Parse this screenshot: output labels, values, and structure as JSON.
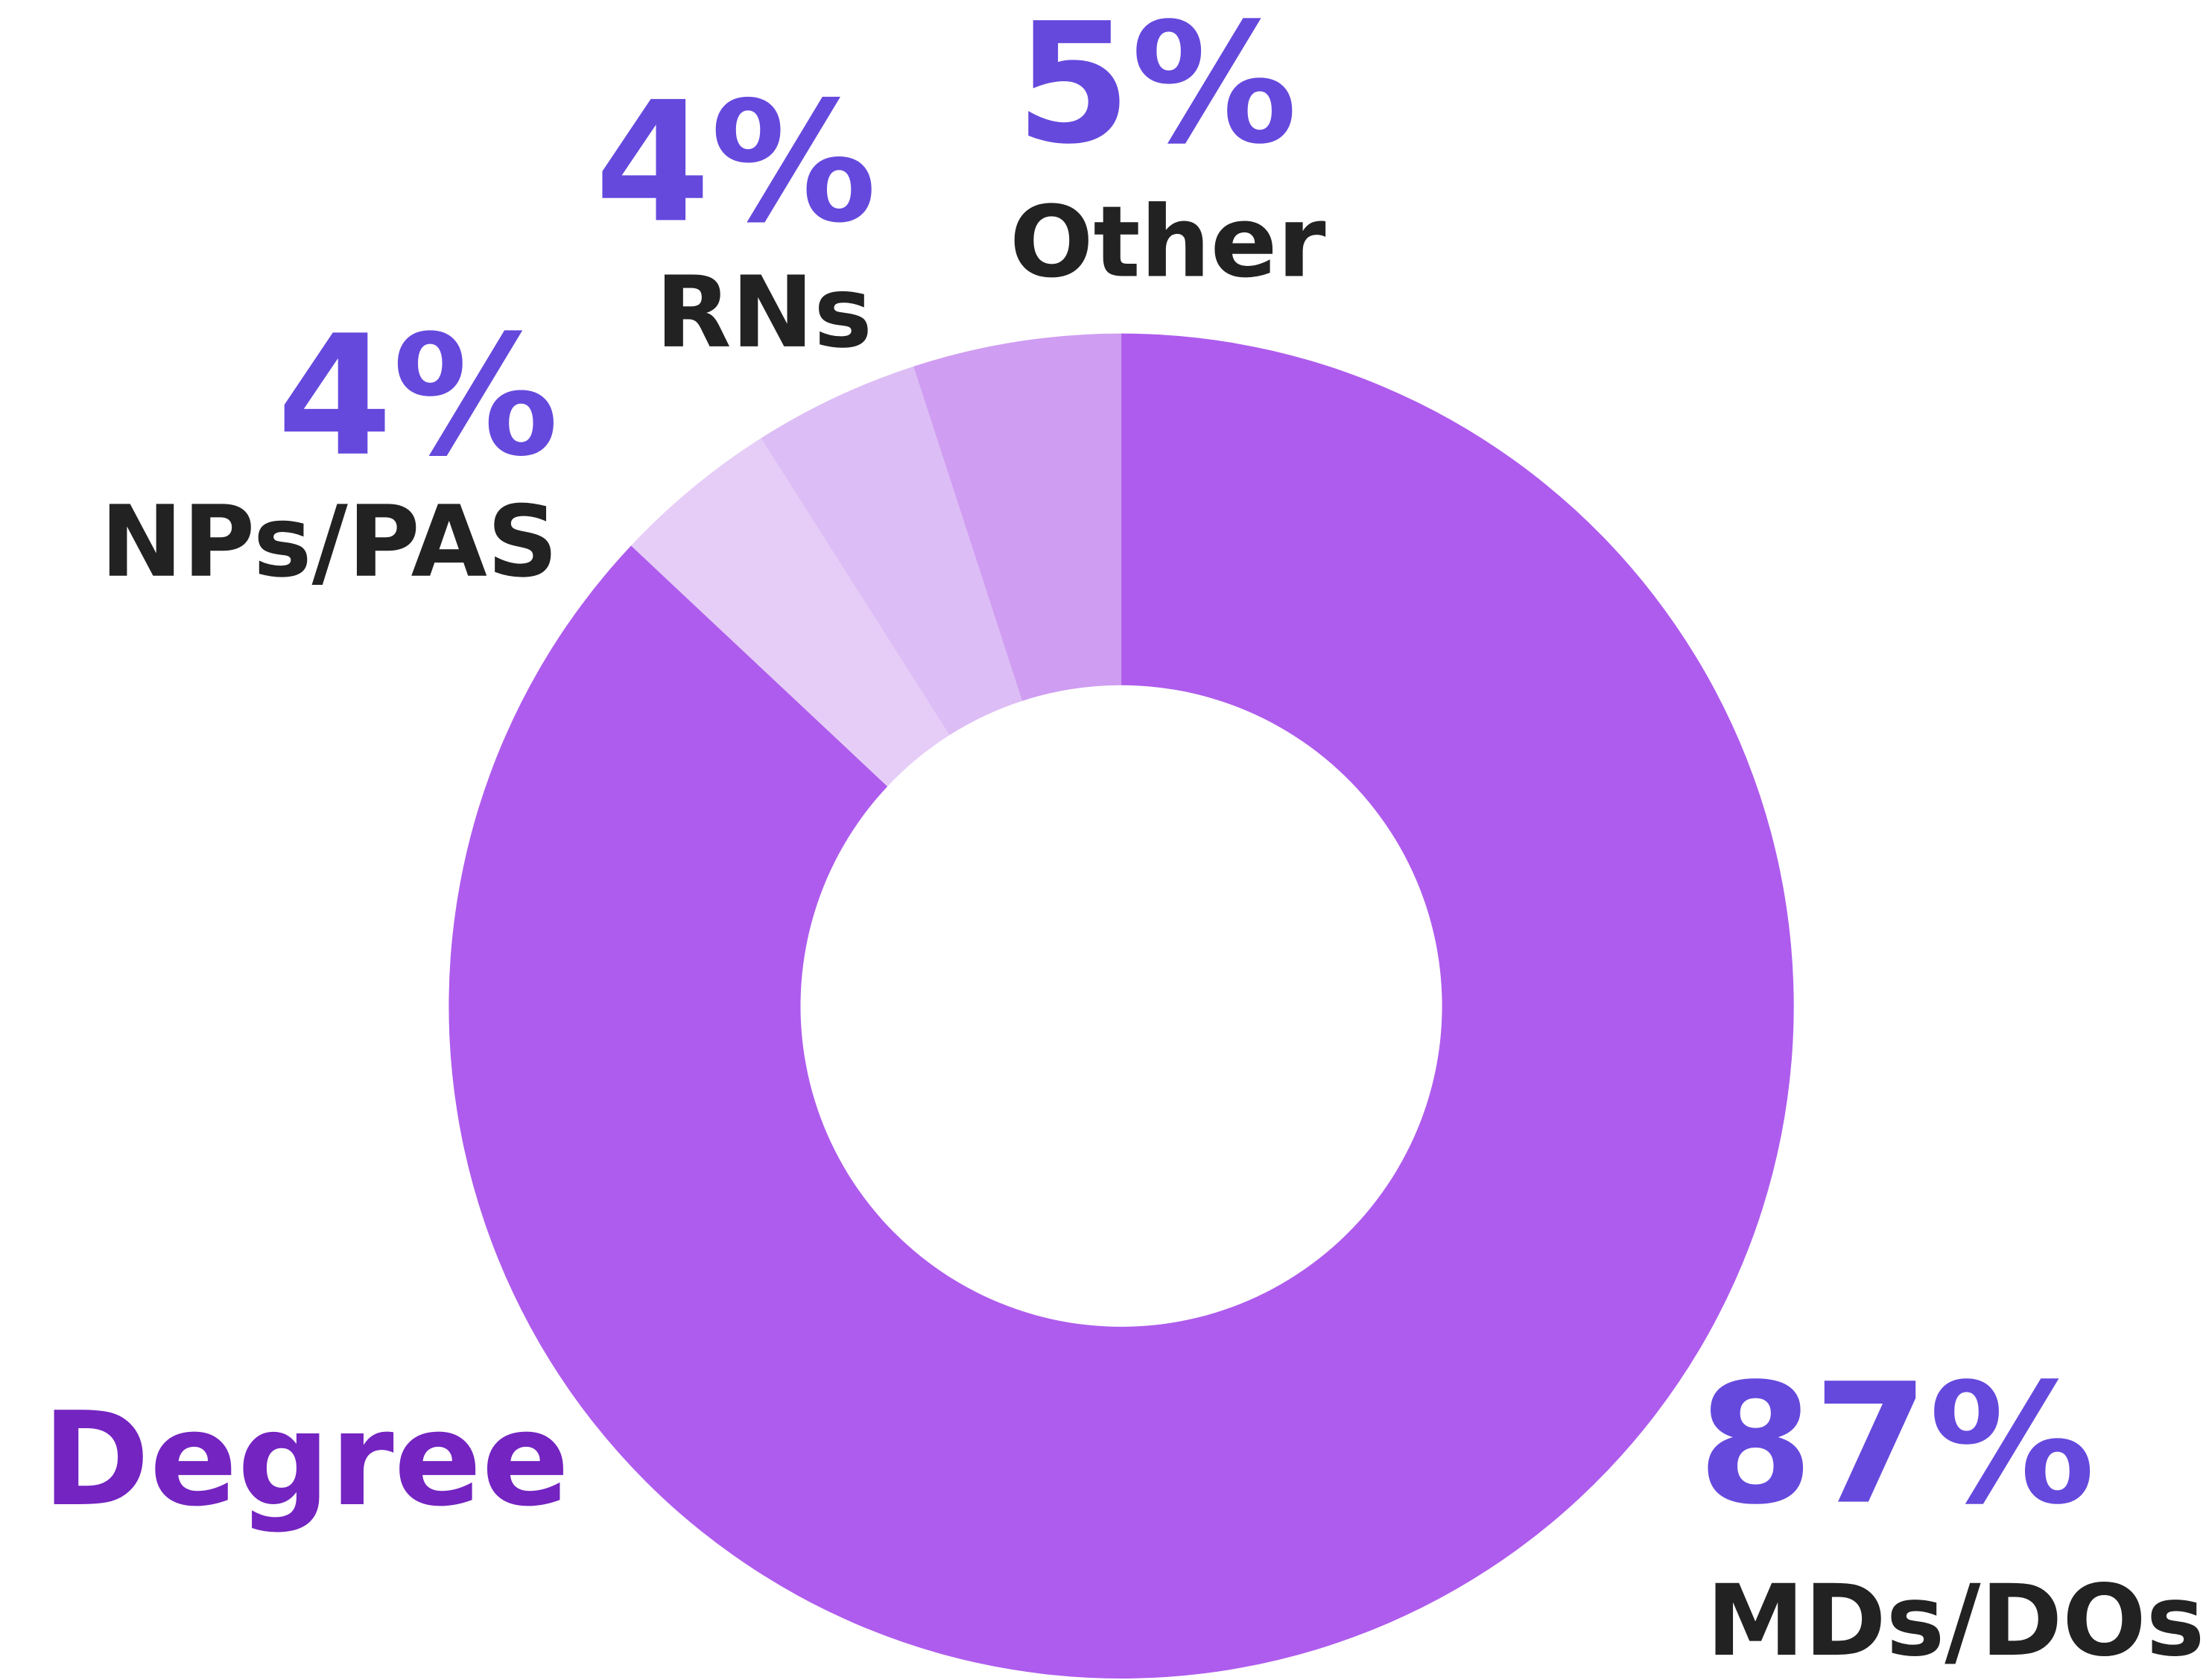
{
  "chart_data": {
    "type": "donut",
    "title": "Degree",
    "categories": [
      "MDs/DOs",
      "NPs/PAS",
      "RNs",
      "Other"
    ],
    "values": [
      87,
      4,
      4,
      5
    ],
    "value_labels": [
      "87%",
      "4%",
      "4%",
      "5%"
    ],
    "colors": [
      "#ae5ced",
      "#e6cdf7",
      "#ddbdf5",
      "#cf9df2"
    ]
  }
}
